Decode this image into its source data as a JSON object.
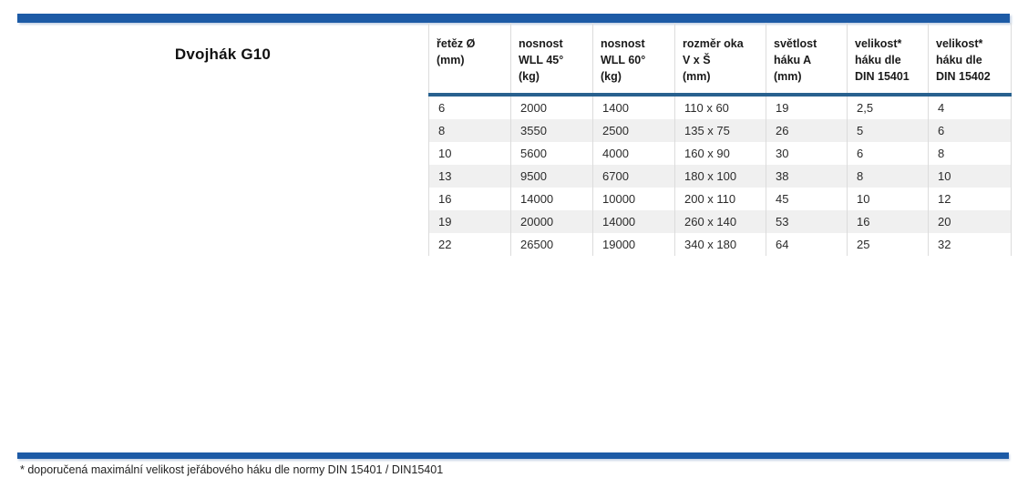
{
  "page": {
    "title": "Dvojhák G10",
    "footnote": "* doporučená maximální velikost jeřábového háku dle normy DIN 15401 / DIN15401"
  },
  "colors": {
    "bar_blue": "#1d5ba6",
    "underline_blue": "#28618f",
    "row_alt_bg": "#f0f0f0",
    "cell_border": "#dcdcdc",
    "text": "#2b2b2b"
  },
  "table": {
    "columns": [
      "řetěz Ø\n(mm)",
      "nosnost\nWLL 45°\n(kg)",
      "nosnost\nWLL 60°\n(kg)",
      "rozměr oka\nV x Š\n(mm)",
      "světlost\nháku A\n(mm)",
      "velikost*\nháku dle\nDIN 15401",
      "velikost*\nháku dle\nDIN 15402"
    ],
    "rows": [
      [
        "6",
        "2000",
        "1400",
        "110 x 60",
        "19",
        "2,5",
        "4"
      ],
      [
        "8",
        "3550",
        "2500",
        "135 x 75",
        "26",
        "5",
        "6"
      ],
      [
        "10",
        "5600",
        "4000",
        "160 x 90",
        "30",
        "6",
        "8"
      ],
      [
        "13",
        "9500",
        "6700",
        "180 x 100",
        "38",
        "8",
        "10"
      ],
      [
        "16",
        "14000",
        "10000",
        "200 x 110",
        "45",
        "10",
        "12"
      ],
      [
        "19",
        "20000",
        "14000",
        "260 x 140",
        "53",
        "16",
        "20"
      ],
      [
        "22",
        "26500",
        "19000",
        "340 x 180",
        "64",
        "25",
        "32"
      ]
    ]
  }
}
